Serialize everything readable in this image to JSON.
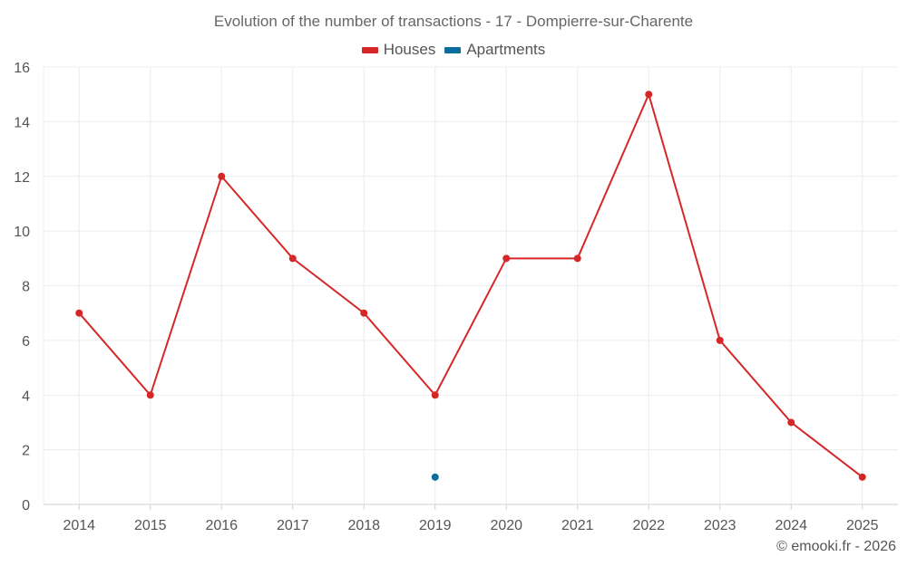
{
  "chart_data": {
    "type": "line",
    "title": "Evolution of the number of transactions - 17 - Dompierre-sur-Charente",
    "categories": [
      "2014",
      "2015",
      "2016",
      "2017",
      "2018",
      "2019",
      "2020",
      "2021",
      "2022",
      "2023",
      "2024",
      "2025"
    ],
    "series": [
      {
        "name": "Houses",
        "color": "#d62728",
        "values": [
          7,
          4,
          12,
          9,
          7,
          4,
          9,
          9,
          15,
          6,
          3,
          1
        ]
      },
      {
        "name": "Apartments",
        "color": "#0b6d9c",
        "values": [
          null,
          null,
          null,
          null,
          null,
          1,
          null,
          null,
          null,
          null,
          null,
          null
        ]
      }
    ],
    "ylim": [
      0,
      16
    ],
    "yticks": [
      0,
      2,
      4,
      6,
      8,
      10,
      12,
      14,
      16
    ],
    "xlabel": "",
    "ylabel": "",
    "grid": true,
    "legend_position": "top-center"
  },
  "credit": "© emooki.fr - 2026"
}
